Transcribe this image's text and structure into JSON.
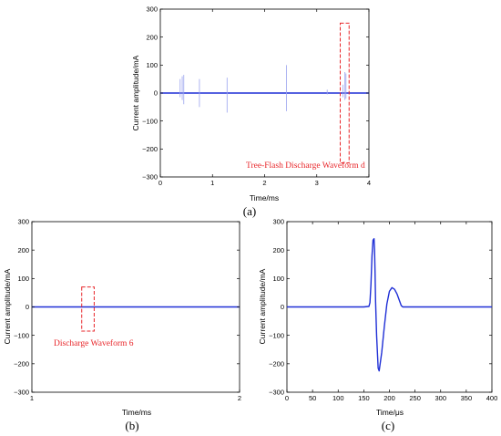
{
  "colors": {
    "signal": "#1f2fd6",
    "annotation": "#e8262a",
    "axis": "#000000"
  },
  "chart_data": [
    {
      "type": "line",
      "panel_label": "(a)",
      "xlabel": "Time/ms",
      "ylabel": "Current amplitude/mA",
      "xlim": [
        0,
        4
      ],
      "ylim": [
        -300,
        300
      ],
      "xticks": [
        "0",
        "1",
        "2",
        "3",
        "4"
      ],
      "yticks": [
        "300",
        "200",
        "100",
        "0",
        "−100",
        "−200",
        "−300"
      ],
      "annotation": {
        "text": "Tree-Flash Discharge Waveform d",
        "x_range": [
          3.45,
          3.62
        ],
        "y_range": [
          -250,
          250
        ]
      },
      "spikes": [
        {
          "x": 0.38,
          "y_max": 50,
          "y_min": -15
        },
        {
          "x": 0.42,
          "y_max": 60,
          "y_min": -25
        },
        {
          "x": 0.45,
          "y_max": 65,
          "y_min": -40
        },
        {
          "x": 0.75,
          "y_max": 50,
          "y_min": -50
        },
        {
          "x": 1.28,
          "y_max": 55,
          "y_min": -70
        },
        {
          "x": 2.42,
          "y_max": 100,
          "y_min": -65
        },
        {
          "x": 3.2,
          "y_max": 12,
          "y_min": -5
        },
        {
          "x": 3.5,
          "y_max": 30,
          "y_min": -15
        },
        {
          "x": 3.54,
          "y_max": 75,
          "y_min": -25
        },
        {
          "x": 3.56,
          "y_max": 70,
          "y_min": -20
        }
      ],
      "baseline": 0
    },
    {
      "type": "line",
      "panel_label": "(b)",
      "xlabel": "Time/ms",
      "ylabel": "Current amplitude/mA",
      "xlim": [
        1,
        2
      ],
      "ylim": [
        -300,
        300
      ],
      "xticks": [
        "1",
        "2"
      ],
      "yticks": [
        "300",
        "200",
        "100",
        "0",
        "−100",
        "−200",
        "−300"
      ],
      "annotation": {
        "text": "Discharge Waveform 6",
        "x_range": [
          1.24,
          1.3
        ],
        "y_range": [
          -85,
          70
        ]
      },
      "baseline": 0
    },
    {
      "type": "line",
      "panel_label": "(c)",
      "xlabel": "Time/μs",
      "ylabel": "Current amplitude/mA",
      "xlim": [
        0,
        400
      ],
      "ylim": [
        -300,
        300
      ],
      "xticks": [
        "0",
        "50",
        "100",
        "150",
        "200",
        "250",
        "300",
        "350",
        "400"
      ],
      "yticks": [
        "300",
        "200",
        "100",
        "0",
        "−100",
        "−200",
        "−300"
      ],
      "series": [
        {
          "x": [
            0,
            50,
            100,
            150,
            160,
            162,
            164,
            166,
            168,
            170,
            171,
            172,
            173,
            175,
            178,
            180,
            185,
            190,
            195,
            200,
            205,
            210,
            215,
            220,
            223,
            226,
            230,
            240,
            260,
            300,
            350,
            400
          ],
          "y": [
            0,
            0,
            0,
            0,
            2,
            15,
            80,
            180,
            235,
            240,
            200,
            120,
            20,
            -100,
            -215,
            -225,
            -160,
            -70,
            10,
            55,
            68,
            62,
            45,
            20,
            5,
            0,
            0,
            0,
            0,
            0,
            0,
            0
          ]
        }
      ]
    }
  ]
}
